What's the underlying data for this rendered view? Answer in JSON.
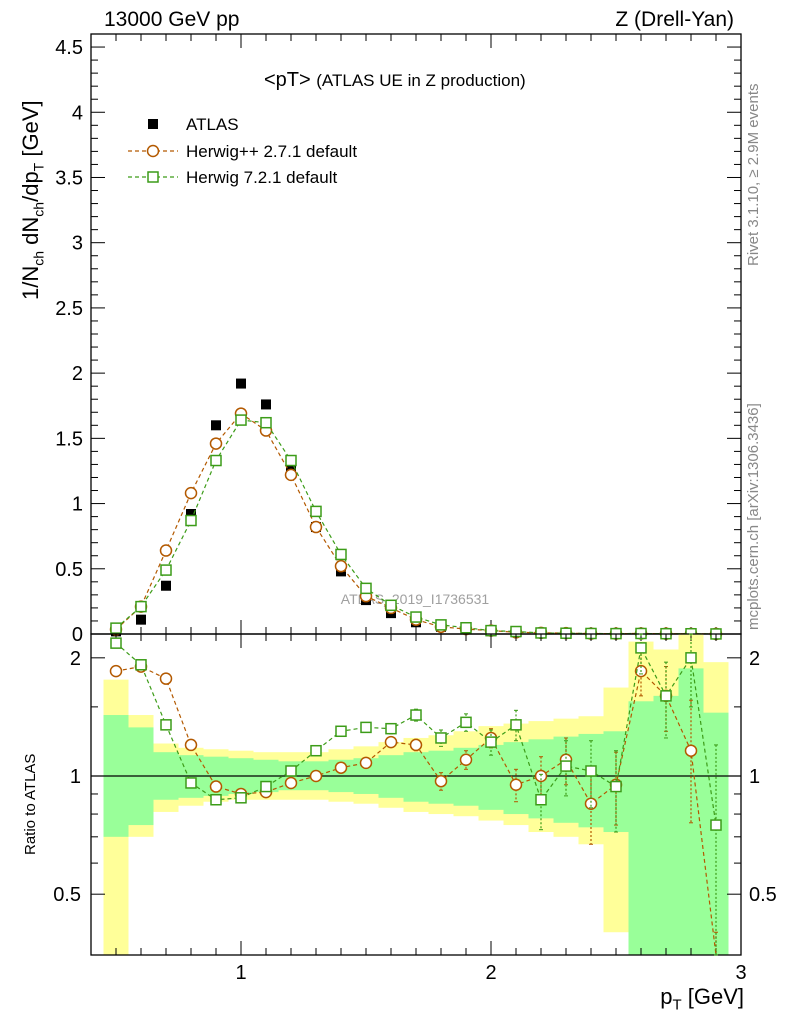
{
  "header": {
    "left": "13000 GeV pp",
    "right": "Z (Drell-Yan)"
  },
  "side_labels": {
    "top": "Rivet 3.1.10, ≥ 2.9M events",
    "bottom": "mcplots.cern.ch [arXiv:1306.3436]"
  },
  "colors": {
    "atlas": "#000000",
    "herwigpp": "#b35900",
    "herwig7": "#3c9c18",
    "band_inner": "#99ff99",
    "band_outer": "#ffff99"
  },
  "chart_data": [
    {
      "type": "scatter",
      "panel": "main",
      "title": "<pT> (ATLAS UE in Z production)",
      "title_main": "<pT>",
      "title_sub": "(ATLAS UE in Z production)",
      "ylabel": "1/N_ch dN_ch/dp_T [GeV]",
      "ylabel_parts": {
        "a": "1/N",
        "a_sub": "ch",
        "b": " dN",
        "b_sub": "ch",
        "c": "/dp",
        "c_sub": "T",
        "d": " [GeV]"
      },
      "xlim": [
        0.4,
        3.0
      ],
      "ylim": [
        0,
        4.6
      ],
      "yticks": [
        0,
        0.5,
        1,
        1.5,
        2,
        2.5,
        3,
        3.5,
        4,
        4.5
      ],
      "ytick_labels": [
        "0",
        "0.5",
        "1",
        "1.5",
        "2",
        "2.5",
        "3",
        "3.5",
        "4",
        "4.5"
      ],
      "watermark": "ATLAS_2019_I1736531",
      "legend": [
        "ATLAS",
        "Herwig++ 2.7.1 default",
        "Herwig 7.2.1 default"
      ],
      "x": [
        0.5,
        0.6,
        0.7,
        0.8,
        0.9,
        1.0,
        1.1,
        1.2,
        1.3,
        1.4,
        1.5,
        1.6,
        1.7,
        1.8,
        1.9,
        2.0,
        2.1,
        2.2,
        2.3,
        2.4,
        2.5,
        2.6,
        2.7,
        2.8,
        2.9
      ],
      "series": [
        {
          "name": "ATLAS",
          "marker": "filled-square",
          "values": [
            0.02,
            0.11,
            0.37,
            0.92,
            1.6,
            1.92,
            1.76,
            1.27,
            0.82,
            0.48,
            0.26,
            0.16,
            0.09,
            0.055,
            0.035,
            0.022,
            0.014,
            0.009,
            0.006,
            0.004,
            0.003,
            0.002,
            0.0015,
            0.001,
            0.0007
          ]
        },
        {
          "name": "Herwig++ 2.7.1 default",
          "marker": "open-circle",
          "values": [
            0.035,
            0.21,
            0.64,
            1.08,
            1.46,
            1.69,
            1.56,
            1.22,
            0.82,
            0.52,
            0.29,
            0.2,
            0.11,
            0.055,
            0.038,
            0.026,
            0.013,
            0.009,
            0.007,
            0.003,
            0.003,
            0.004,
            0.0024,
            0.0012,
            0.0005
          ]
        },
        {
          "name": "Herwig 7.2.1 default",
          "marker": "open-square",
          "values": [
            0.045,
            0.21,
            0.49,
            0.87,
            1.33,
            1.64,
            1.62,
            1.33,
            0.94,
            0.61,
            0.35,
            0.22,
            0.13,
            0.07,
            0.048,
            0.026,
            0.019,
            0.008,
            0.006,
            0.004,
            0.003,
            0.004,
            0.0024,
            0.002,
            0.0005
          ]
        }
      ]
    },
    {
      "type": "scatter",
      "panel": "ratio",
      "ylabel": "Ratio to ATLAS",
      "xlabel": "p_T [GeV]",
      "xlabel_parts": {
        "a": "p",
        "a_sub": "T",
        "b": " [GeV]"
      },
      "xlim": [
        0.4,
        3.0
      ],
      "ylim": [
        0.35,
        2.3
      ],
      "yticks": [
        0.5,
        1,
        2
      ],
      "ytick_labels": [
        "0.5",
        "1",
        "2"
      ],
      "xticks": [
        1,
        2,
        3
      ],
      "xtick_labels": [
        "1",
        "2",
        "3"
      ],
      "x": [
        0.5,
        0.6,
        0.7,
        0.8,
        0.9,
        1.0,
        1.1,
        1.2,
        1.3,
        1.4,
        1.5,
        1.6,
        1.7,
        1.8,
        1.9,
        2.0,
        2.1,
        2.2,
        2.3,
        2.4,
        2.5,
        2.6,
        2.7,
        2.8,
        2.9
      ],
      "bands": {
        "inner_low": [
          0.7,
          0.75,
          0.87,
          0.88,
          0.89,
          0.9,
          0.91,
          0.92,
          0.92,
          0.91,
          0.9,
          0.88,
          0.86,
          0.85,
          0.84,
          0.82,
          0.8,
          0.78,
          0.76,
          0.74,
          0.72,
          0.35,
          0.35,
          0.35,
          0.35
        ],
        "inner_high": [
          1.43,
          1.33,
          1.15,
          1.13,
          1.12,
          1.11,
          1.1,
          1.09,
          1.09,
          1.1,
          1.11,
          1.13,
          1.15,
          1.16,
          1.18,
          1.2,
          1.22,
          1.24,
          1.26,
          1.28,
          1.3,
          1.55,
          1.6,
          1.88,
          1.45
        ],
        "outer_low": [
          0.35,
          0.7,
          0.81,
          0.84,
          0.86,
          0.87,
          0.87,
          0.87,
          0.87,
          0.86,
          0.85,
          0.83,
          0.81,
          0.8,
          0.79,
          0.77,
          0.75,
          0.72,
          0.7,
          0.67,
          0.4,
          0.35,
          0.4,
          0.35,
          0.35
        ],
        "outer_high": [
          1.76,
          1.43,
          1.21,
          1.18,
          1.17,
          1.16,
          1.15,
          1.15,
          1.15,
          1.17,
          1.19,
          1.22,
          1.25,
          1.27,
          1.3,
          1.34,
          1.36,
          1.38,
          1.4,
          1.42,
          1.68,
          2.2,
          2.1,
          2.3,
          1.95
        ]
      },
      "series": [
        {
          "name": "Herwig++ 2.7.1 default",
          "values": [
            1.85,
            1.9,
            1.77,
            1.2,
            0.94,
            0.9,
            0.91,
            0.96,
            1.0,
            1.05,
            1.08,
            1.22,
            1.2,
            0.97,
            1.1,
            1.25,
            0.95,
            1.0,
            1.1,
            0.85,
            0.95,
            1.85,
            1.6,
            1.16,
            0.3
          ],
          "errors": [
            0.05,
            0.03,
            0.02,
            0.02,
            0.01,
            0.01,
            0.01,
            0.01,
            0.02,
            0.02,
            0.02,
            0.03,
            0.04,
            0.05,
            0.06,
            0.07,
            0.09,
            0.12,
            0.15,
            0.18,
            0.2,
            0.25,
            0.3,
            0.4,
            0.1
          ]
        },
        {
          "name": "Herwig 7.2.1 default",
          "values": [
            2.18,
            1.92,
            1.35,
            0.96,
            0.87,
            0.88,
            0.94,
            1.03,
            1.16,
            1.3,
            1.33,
            1.32,
            1.43,
            1.25,
            1.37,
            1.22,
            1.35,
            0.87,
            1.06,
            1.03,
            0.94,
            2.12,
            1.6,
            2.0,
            0.75
          ],
          "errors": [
            0.04,
            0.03,
            0.02,
            0.01,
            0.01,
            0.01,
            0.01,
            0.01,
            0.02,
            0.02,
            0.03,
            0.04,
            0.05,
            0.06,
            0.07,
            0.09,
            0.12,
            0.14,
            0.17,
            0.2,
            0.22,
            0.3,
            0.35,
            0.5,
            0.45
          ]
        }
      ]
    }
  ]
}
